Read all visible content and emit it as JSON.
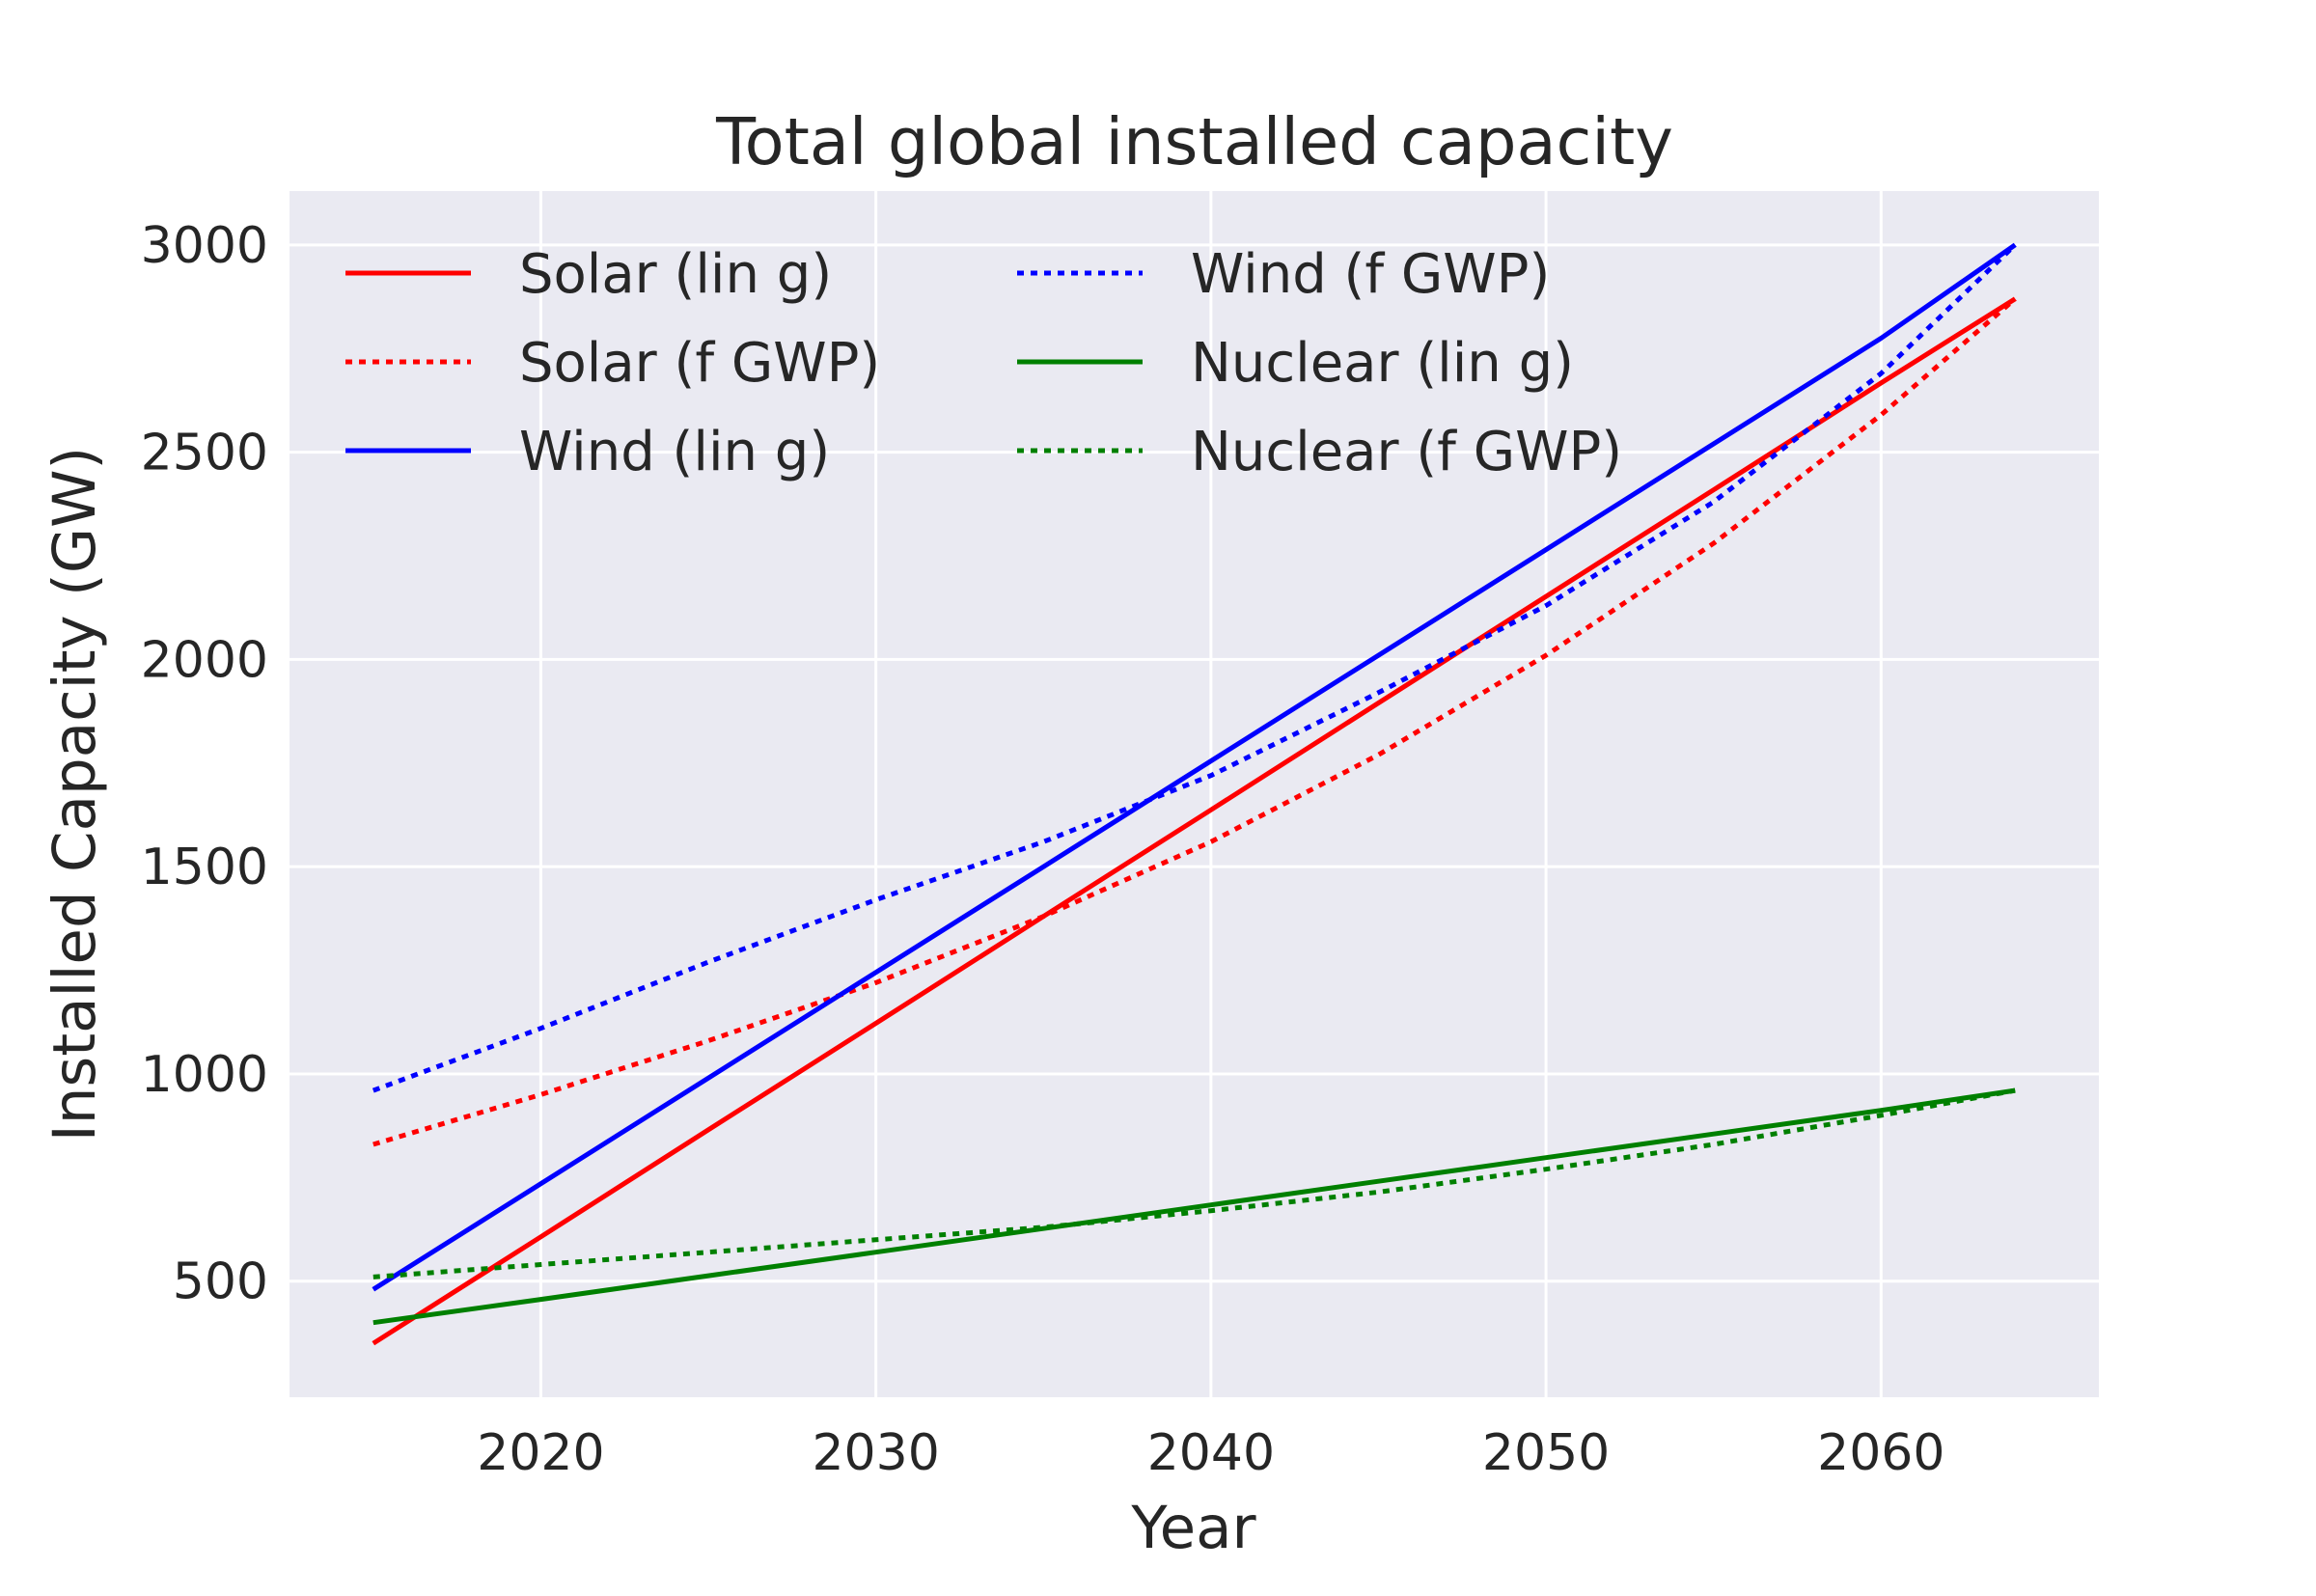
{
  "chart_data": {
    "type": "line",
    "title": "Total global installed capacity",
    "xlabel": "Year",
    "ylabel": "Installed Capacity (GW)",
    "xlim": [
      2012.5,
      2066.5
    ],
    "ylim": [
      220,
      3130
    ],
    "xticks": [
      2020,
      2030,
      2040,
      2050,
      2060
    ],
    "yticks": [
      500,
      1000,
      1500,
      2000,
      2500,
      3000
    ],
    "grid": true,
    "legend": "top-left",
    "legend_columns": 2,
    "colors": {
      "background": "#eaeaf2",
      "grid": "#ffffff",
      "solar": "#ff0000",
      "wind": "#0000ff",
      "nuclear": "#008000"
    },
    "x": [
      2015,
      2020,
      2025,
      2030,
      2035,
      2040,
      2045,
      2050,
      2055,
      2060,
      2064
    ],
    "series": [
      {
        "name": "Solar (lin g)",
        "color": "#ff0000",
        "style": "solid",
        "values": [
          350,
          607,
          865,
          1122,
          1380,
          1637,
          1895,
          2152,
          2409,
          2667,
          2870
        ]
      },
      {
        "name": "Solar (f GWP)",
        "color": "#ff0000",
        "style": "dotted",
        "values": [
          830,
          950,
          1080,
          1220,
          1380,
          1560,
          1770,
          2010,
          2280,
          2590,
          2870
        ]
      },
      {
        "name": "Wind (lin g)",
        "color": "#0000ff",
        "style": "solid",
        "values": [
          480,
          735,
          990,
          1245,
          1500,
          1755,
          2010,
          2265,
          2520,
          2775,
          3000
        ]
      },
      {
        "name": "Wind (f GWP)",
        "color": "#0000ff",
        "style": "dotted",
        "values": [
          960,
          1110,
          1270,
          1420,
          1560,
          1720,
          1920,
          2130,
          2380,
          2690,
          3000
        ]
      },
      {
        "name": "Nuclear (lin g)",
        "color": "#008000",
        "style": "solid",
        "values": [
          400,
          456,
          513,
          570,
          627,
          684,
          741,
          798,
          855,
          912,
          960
        ]
      },
      {
        "name": "Nuclear (f GWP)",
        "color": "#008000",
        "style": "dotted",
        "values": [
          510,
          540,
          570,
          600,
          630,
          670,
          715,
          770,
          830,
          900,
          960
        ]
      }
    ]
  }
}
